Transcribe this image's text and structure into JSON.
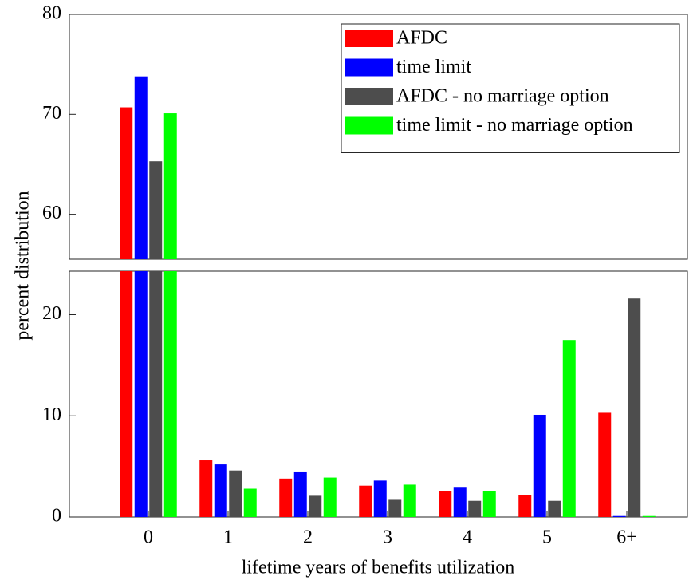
{
  "chart_data": {
    "type": "bar",
    "xlabel": "lifetime years of benefits utilization",
    "ylabel": "percent distribution",
    "categories": [
      "0",
      "1",
      "2",
      "3",
      "4",
      "5",
      "6+"
    ],
    "series": [
      {
        "name": "AFDC",
        "color": "#ff0000",
        "values": [
          70.7,
          5.6,
          3.8,
          3.1,
          2.6,
          2.2,
          10.3
        ]
      },
      {
        "name": "time limit",
        "color": "#0000ff",
        "values": [
          73.8,
          5.2,
          4.5,
          3.6,
          2.9,
          10.1,
          0.1
        ]
      },
      {
        "name": "AFDC - no marriage option",
        "color": "#4d4d4d",
        "values": [
          65.3,
          4.6,
          2.1,
          1.7,
          1.6,
          1.6,
          21.6
        ]
      },
      {
        "name": "time limit - no marriage option",
        "color": "#00ff00",
        "values": [
          70.1,
          2.8,
          3.9,
          3.2,
          2.6,
          17.5,
          0.1
        ]
      }
    ],
    "ylim": [
      0,
      80
    ],
    "ybreak": [
      24.3,
      55.5
    ],
    "yticks": [
      0,
      10,
      20,
      60,
      70,
      80
    ],
    "legend": "upper right"
  }
}
